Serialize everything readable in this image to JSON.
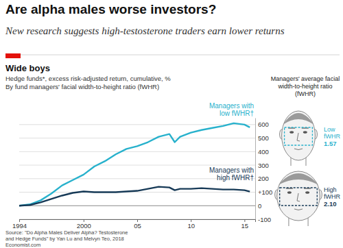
{
  "header": {
    "title": "Are alpha males worse investors?",
    "subtitle": "New research suggests high-testosterone traders earn lower returns"
  },
  "chart_data": {
    "type": "line",
    "title": "Wide boys",
    "subtitle": "Hedge funds*, excess risk-adjusted return, cumulative, %",
    "annotations": [
      "By fund managers' facial width-to-height ratio (fWHR)"
    ],
    "x": [
      1994,
      1995,
      1996,
      1997,
      1998,
      1999,
      2000,
      2001,
      2002,
      2003,
      2004,
      2005,
      2006,
      2007,
      2008,
      2008.5,
      2009,
      2010,
      2011,
      2012,
      2013,
      2014,
      2015,
      2015.5
    ],
    "xlim": [
      1994,
      2016
    ],
    "xticks": [
      1994,
      2000,
      {
        "value": 2005,
        "label": "05"
      },
      {
        "value": 2010,
        "label": "10"
      },
      {
        "value": 2015,
        "label": "15"
      }
    ],
    "ylim": [
      -100,
      650
    ],
    "yticks": [
      -100,
      0,
      {
        "value": 100,
        "label": "+100"
      },
      200,
      300,
      400,
      500,
      600
    ],
    "grid": true,
    "series": [
      {
        "name": "Managers with low fWHR†",
        "color": "#27b1cc",
        "values": [
          0,
          10,
          40,
          90,
          150,
          190,
          230,
          290,
          330,
          380,
          420,
          440,
          470,
          510,
          530,
          470,
          510,
          540,
          560,
          575,
          590,
          610,
          600,
          580
        ]
      },
      {
        "name": "Managers with high fWHR†",
        "color": "#173a57",
        "values": [
          0,
          5,
          25,
          50,
          75,
          95,
          105,
          100,
          100,
          100,
          105,
          110,
          125,
          140,
          135,
          115,
          125,
          125,
          130,
          125,
          120,
          120,
          115,
          105
        ]
      }
    ]
  },
  "panel": {
    "title_lines": [
      "Managers' average facial",
      "width-to-height ratio",
      "(fWHR)"
    ],
    "faces": [
      {
        "label": "Low fWHR",
        "ratio": "1.57",
        "color": "#27b1cc"
      },
      {
        "label": "High fWHR",
        "ratio": "2.10",
        "color": "#173a57"
      }
    ]
  },
  "footer": {
    "source_lines": [
      "Source: \"Do Alpha Males Deliver Alpha? Testosterone",
      "and Hedge Funds\" by Yan Lu and Melvyn Teo, 2018"
    ],
    "credit": "Economist.com"
  }
}
